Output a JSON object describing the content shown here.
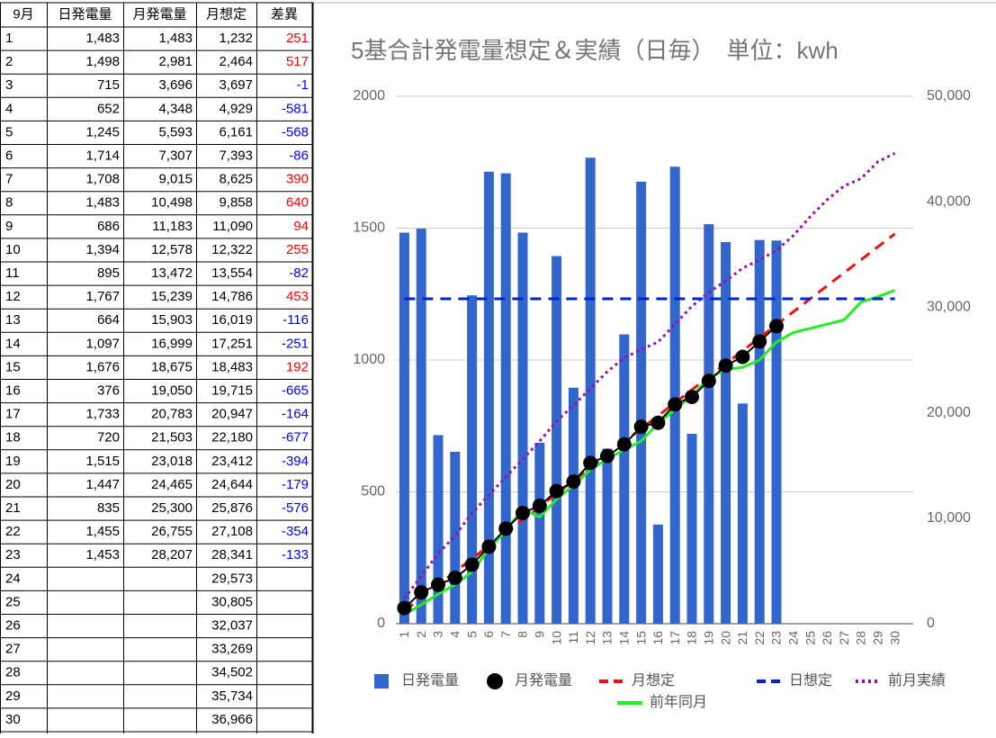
{
  "table": {
    "header": [
      "9月",
      "日発電量",
      "月発電量",
      "月想定",
      "差異"
    ],
    "rows": [
      [
        "1",
        "1,483",
        "1,483",
        "1,232",
        "251"
      ],
      [
        "2",
        "1,498",
        "2,981",
        "2,464",
        "517"
      ],
      [
        "3",
        "715",
        "3,696",
        "3,697",
        "-1"
      ],
      [
        "4",
        "652",
        "4,348",
        "4,929",
        "-581"
      ],
      [
        "5",
        "1,245",
        "5,593",
        "6,161",
        "-568"
      ],
      [
        "6",
        "1,714",
        "7,307",
        "7,393",
        "-86"
      ],
      [
        "7",
        "1,708",
        "9,015",
        "8,625",
        "390"
      ],
      [
        "8",
        "1,483",
        "10,498",
        "9,858",
        "640"
      ],
      [
        "9",
        "686",
        "11,183",
        "11,090",
        "94"
      ],
      [
        "10",
        "1,394",
        "12,578",
        "12,322",
        "255"
      ],
      [
        "11",
        "895",
        "13,472",
        "13,554",
        "-82"
      ],
      [
        "12",
        "1,767",
        "15,239",
        "14,786",
        "453"
      ],
      [
        "13",
        "664",
        "15,903",
        "16,019",
        "-116"
      ],
      [
        "14",
        "1,097",
        "16,999",
        "17,251",
        "-251"
      ],
      [
        "15",
        "1,676",
        "18,675",
        "18,483",
        "192"
      ],
      [
        "16",
        "376",
        "19,050",
        "19,715",
        "-665"
      ],
      [
        "17",
        "1,733",
        "20,783",
        "20,947",
        "-164"
      ],
      [
        "18",
        "720",
        "21,503",
        "22,180",
        "-677"
      ],
      [
        "19",
        "1,515",
        "23,018",
        "23,412",
        "-394"
      ],
      [
        "20",
        "1,447",
        "24,465",
        "24,644",
        "-179"
      ],
      [
        "21",
        "835",
        "25,300",
        "25,876",
        "-576"
      ],
      [
        "22",
        "1,455",
        "26,755",
        "27,108",
        "-354"
      ],
      [
        "23",
        "1,453",
        "28,207",
        "28,341",
        "-133"
      ],
      [
        "24",
        null,
        null,
        "29,573",
        null
      ],
      [
        "25",
        null,
        null,
        "30,805",
        null
      ],
      [
        "26",
        null,
        null,
        "32,037",
        null
      ],
      [
        "27",
        null,
        null,
        "33,269",
        null
      ],
      [
        "28",
        null,
        null,
        "34,502",
        null
      ],
      [
        "29",
        null,
        null,
        "35,734",
        null
      ],
      [
        "30",
        null,
        null,
        "36,966",
        null
      ]
    ]
  },
  "chart_data": {
    "type": "combo",
    "title": "5基合計発電量想定＆実績（日毎）　単位：kwh",
    "categories": [
      "1",
      "2",
      "3",
      "4",
      "5",
      "6",
      "7",
      "8",
      "9",
      "10",
      "11",
      "12",
      "13",
      "14",
      "15",
      "16",
      "17",
      "18",
      "19",
      "20",
      "21",
      "22",
      "23",
      "24",
      "25",
      "26",
      "27",
      "28",
      "29",
      "30"
    ],
    "ylim": [
      0,
      2000
    ],
    "yticks": [
      0,
      500,
      1000,
      1500,
      2000
    ],
    "y2lim": [
      0,
      50000
    ],
    "y2ticks": [
      0,
      {
        "value": 10000,
        "label": "10,000"
      },
      {
        "value": 20000,
        "label": "20,000"
      },
      {
        "value": 30000,
        "label": "30,000"
      },
      {
        "value": 40000,
        "label": "40,000"
      },
      {
        "value": 50000,
        "label": "50,000"
      }
    ],
    "grid": true,
    "legend": "bottom",
    "series": [
      {
        "name": "日発電量",
        "type": "bar",
        "color": "#3366cc",
        "values": [
          1483,
          1498,
          715,
          652,
          1245,
          1714,
          1708,
          1483,
          686,
          1394,
          895,
          1767,
          664,
          1097,
          1676,
          376,
          1733,
          720,
          1515,
          1447,
          835,
          1455,
          1453,
          null,
          null,
          null,
          null,
          null,
          null,
          null
        ]
      },
      {
        "name": "月発電量",
        "type": "scatter",
        "color": "#000000",
        "axis": "y2",
        "values": [
          1483,
          2981,
          3696,
          4348,
          5593,
          7307,
          9015,
          10498,
          11183,
          12578,
          13472,
          15239,
          15903,
          16999,
          18675,
          19050,
          20783,
          21503,
          23018,
          24465,
          25300,
          26755,
          28207,
          null,
          null,
          null,
          null,
          null,
          null,
          null
        ]
      },
      {
        "name": "月想定",
        "type": "line",
        "line_style": "dashed",
        "color": "#ee1111",
        "axis": "y2",
        "values": [
          1232,
          2464,
          3697,
          4929,
          6161,
          7393,
          8625,
          9858,
          11090,
          12322,
          13554,
          14786,
          16019,
          17251,
          18483,
          19715,
          20947,
          22180,
          23412,
          24644,
          25876,
          27108,
          28341,
          29573,
          30805,
          32037,
          33269,
          34502,
          35734,
          36966
        ]
      },
      {
        "name": "日想定",
        "type": "line",
        "line_style": "dashed",
        "color": "#0022dd",
        "values": [
          1232,
          1232,
          1232,
          1232,
          1232,
          1232,
          1232,
          1232,
          1232,
          1232,
          1232,
          1232,
          1232,
          1232,
          1232,
          1232,
          1232,
          1232,
          1232,
          1232,
          1232,
          1232,
          1232,
          1232,
          1232,
          1232,
          1232,
          1232,
          1232,
          1232
        ]
      },
      {
        "name": "前月実績",
        "type": "line",
        "line_style": "dotted",
        "color": "#9911aa",
        "axis": "y2",
        "values": [
          2400,
          4500,
          6650,
          8350,
          10500,
          12200,
          13900,
          15600,
          17300,
          19200,
          20700,
          22300,
          23900,
          25200,
          26000,
          26700,
          28400,
          30100,
          31400,
          32500,
          33700,
          34500,
          35400,
          36800,
          38600,
          40200,
          41500,
          42200,
          43800,
          44600
        ]
      },
      {
        "name": "前年同月",
        "type": "line",
        "line_style": "solid",
        "color": "#22ee22",
        "axis": "y2",
        "values": [
          850,
          1800,
          2800,
          3700,
          4900,
          7100,
          8800,
          10900,
          10100,
          11800,
          13100,
          14600,
          15600,
          16500,
          17300,
          19000,
          20300,
          21600,
          23300,
          24100,
          24300,
          25000,
          26700,
          27600,
          28000,
          28400,
          28800,
          30500,
          31000,
          31600
        ]
      }
    ]
  }
}
